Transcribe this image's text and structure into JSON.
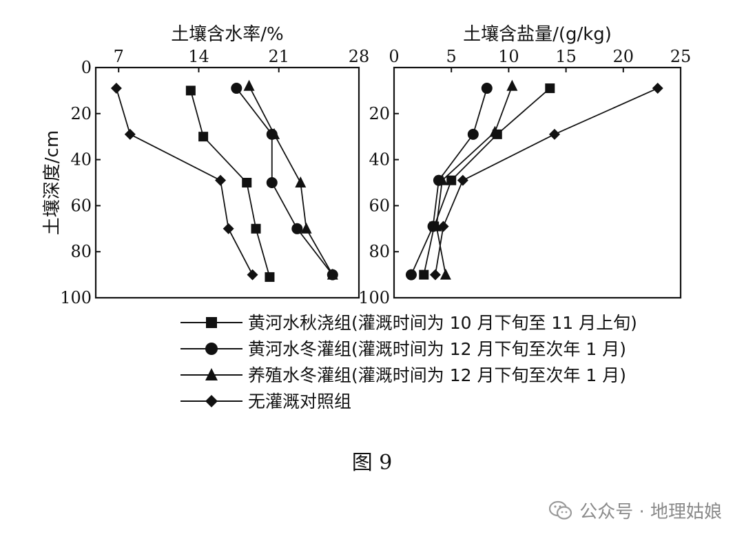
{
  "chart_data": [
    {
      "type": "line",
      "xlabel": "土壤含水率/%",
      "ylabel": "土壤深度/cm",
      "xlim": [
        5,
        28
      ],
      "xticks": [
        "7",
        "14",
        "21",
        "28"
      ],
      "ylim": [
        0,
        100
      ],
      "yticks": [
        "0",
        "20",
        "40",
        "60",
        "80",
        "100"
      ],
      "x_axis_position": "top",
      "series": [
        {
          "name": "黄河水秋浇组(灌溉时间为 10 月下旬至 11 月上旬)",
          "marker": "square",
          "points": [
            {
              "x": 13.3,
              "y": 10
            },
            {
              "x": 14.4,
              "y": 30
            },
            {
              "x": 18.2,
              "y": 50
            },
            {
              "x": 19.0,
              "y": 70
            },
            {
              "x": 20.2,
              "y": 91
            }
          ]
        },
        {
          "name": "黄河水冬灌组(灌溉时间为 12 月下旬至次年 1 月)",
          "marker": "circle",
          "points": [
            {
              "x": 17.3,
              "y": 9
            },
            {
              "x": 20.4,
              "y": 29
            },
            {
              "x": 20.4,
              "y": 50
            },
            {
              "x": 22.6,
              "y": 70
            },
            {
              "x": 25.7,
              "y": 90
            }
          ]
        },
        {
          "name": "养殖水冬灌组(灌溉时间为 12 月下旬至次年 1 月)",
          "marker": "triangle",
          "points": [
            {
              "x": 18.4,
              "y": 8
            },
            {
              "x": 20.6,
              "y": 29
            },
            {
              "x": 22.9,
              "y": 50
            },
            {
              "x": 23.4,
              "y": 70
            },
            {
              "x": 25.7,
              "y": 90
            }
          ]
        },
        {
          "name": "无灌溉对照组",
          "marker": "diamond",
          "points": [
            {
              "x": 6.8,
              "y": 9
            },
            {
              "x": 8.0,
              "y": 29
            },
            {
              "x": 15.9,
              "y": 49
            },
            {
              "x": 16.6,
              "y": 70
            },
            {
              "x": 18.7,
              "y": 90
            }
          ]
        }
      ]
    },
    {
      "type": "line",
      "xlabel": "土壤含盐量/(g/kg)",
      "ylabel": "",
      "xlim": [
        0,
        25
      ],
      "xticks": [
        "0",
        "5",
        "10",
        "15",
        "20",
        "25"
      ],
      "ylim": [
        0,
        100
      ],
      "yticks": [
        "20",
        "40",
        "60",
        "80",
        "100"
      ],
      "x_axis_position": "top",
      "series": [
        {
          "name": "黄河水秋浇组(灌溉时间为 10 月下旬至 11 月上旬)",
          "marker": "square",
          "points": [
            {
              "x": 13.6,
              "y": 9
            },
            {
              "x": 9.0,
              "y": 29
            },
            {
              "x": 5.0,
              "y": 49
            },
            {
              "x": 3.5,
              "y": 69
            },
            {
              "x": 2.6,
              "y": 90
            }
          ]
        },
        {
          "name": "黄河水冬灌组(灌溉时间为 12 月下旬至次年 1 月)",
          "marker": "circle",
          "points": [
            {
              "x": 8.1,
              "y": 9
            },
            {
              "x": 6.9,
              "y": 29
            },
            {
              "x": 3.9,
              "y": 49
            },
            {
              "x": 3.4,
              "y": 69
            },
            {
              "x": 1.5,
              "y": 90
            }
          ]
        },
        {
          "name": "养殖水冬灌组(灌溉时间为 12 月下旬至次年 1 月)",
          "marker": "triangle",
          "points": [
            {
              "x": 10.3,
              "y": 8
            },
            {
              "x": 8.8,
              "y": 28
            },
            {
              "x": 4.2,
              "y": 49
            },
            {
              "x": 3.7,
              "y": 69
            },
            {
              "x": 4.5,
              "y": 90
            }
          ]
        },
        {
          "name": "无灌溉对照组",
          "marker": "diamond",
          "points": [
            {
              "x": 23.0,
              "y": 9
            },
            {
              "x": 14.0,
              "y": 29
            },
            {
              "x": 6.0,
              "y": 49
            },
            {
              "x": 4.3,
              "y": 69
            },
            {
              "x": 3.6,
              "y": 90
            }
          ]
        }
      ]
    }
  ],
  "legend": [
    {
      "marker": "square",
      "label": "黄河水秋浇组(灌溉时间为 10 月下旬至 11 月上旬)"
    },
    {
      "marker": "circle",
      "label": "黄河水冬灌组(灌溉时间为 12 月下旬至次年 1 月)"
    },
    {
      "marker": "triangle",
      "label": "养殖水冬灌组(灌溉时间为 12 月下旬至次年 1 月)"
    },
    {
      "marker": "diamond",
      "label": "无灌溉对照组"
    }
  ],
  "caption": "图 9",
  "watermark": {
    "text": "公众号 · 地理姑娘",
    "icon": "wechat-icon"
  },
  "colors": {
    "ink": "#111111",
    "background": "#ffffff",
    "watermark": "#8a8a8a"
  }
}
